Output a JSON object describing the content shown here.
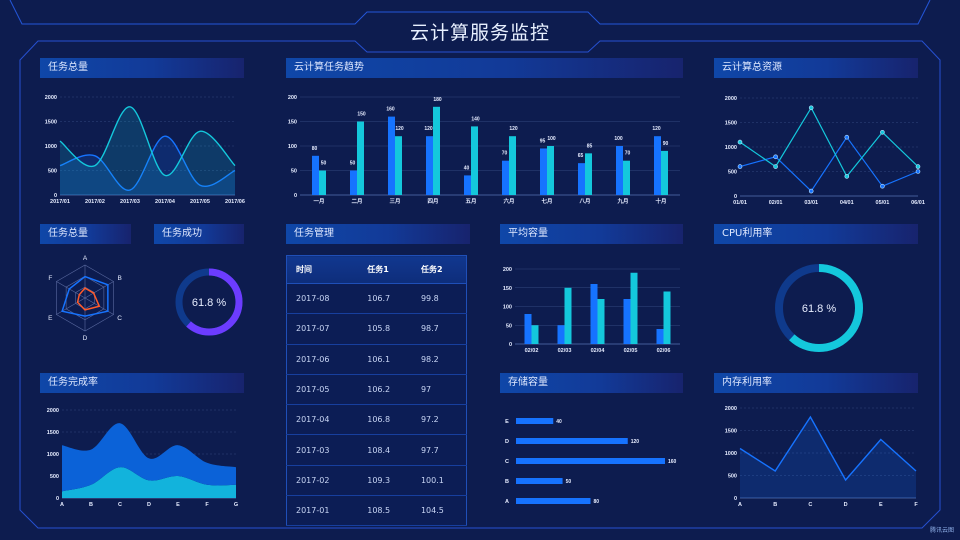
{
  "header": {
    "title": "云计算服务监控"
  },
  "panels": {
    "task_total": "任务总量",
    "task_trend": "云计算任务趋势",
    "total_resources": "云计算总资源",
    "task_total_radar": "任务总量",
    "task_success": "任务成功",
    "task_management": "任务管理",
    "avg_capacity": "平均容量",
    "cpu_usage": "CPU利用率",
    "task_completion": "任务完成率",
    "storage_capacity": "存储容量",
    "memory_usage": "内存利用率"
  },
  "table": {
    "columns": [
      "时间",
      "任务1",
      "任务2"
    ],
    "rows": [
      [
        "2017-08",
        "106.7",
        "99.8"
      ],
      [
        "2017-07",
        "105.8",
        "98.7"
      ],
      [
        "2017-06",
        "106.1",
        "98.2"
      ],
      [
        "2017-05",
        "106.2",
        "97"
      ],
      [
        "2017-04",
        "106.8",
        "97.2"
      ],
      [
        "2017-03",
        "108.4",
        "97.7"
      ],
      [
        "2017-02",
        "109.3",
        "100.1"
      ],
      [
        "2017-01",
        "108.5",
        "104.5"
      ]
    ]
  },
  "colors": {
    "background": "#0d1c4f",
    "blue": "#1673ff",
    "cyan": "#14c8dc",
    "purple": "#6c3cff",
    "frame": "#2456d8"
  },
  "watermark": "腾讯云图",
  "chart_data": [
    {
      "id": "task-total",
      "type": "area",
      "smooth": true,
      "categories": [
        "2017/01",
        "2017/02",
        "2017/03",
        "2017/04",
        "2017/05",
        "2017/06"
      ],
      "yticks": [
        "0",
        "500",
        "1000",
        "1500",
        "2000"
      ],
      "ylim": [
        0,
        2000
      ],
      "grid": true,
      "series": [
        {
          "values": [
            600,
            800,
            100,
            1200,
            200,
            500
          ],
          "color": "#1673ff"
        },
        {
          "values": [
            1100,
            600,
            1800,
            400,
            1300,
            600
          ],
          "color": "#14c8dc"
        }
      ]
    },
    {
      "id": "task-trend",
      "type": "bar",
      "categories": [
        "一月",
        "二月",
        "三月",
        "四月",
        "五月",
        "六月",
        "七月",
        "八月",
        "九月",
        "十月"
      ],
      "yticks": [
        "0",
        "50",
        "100",
        "150",
        "200"
      ],
      "ylim": [
        0,
        200
      ],
      "grid": true,
      "data_labels": true,
      "series": [
        {
          "values": [
            80,
            50,
            160,
            120,
            40,
            70,
            95,
            65,
            100,
            120
          ],
          "color": "#1673ff"
        },
        {
          "values": [
            50,
            150,
            120,
            180,
            140,
            120,
            100,
            85,
            70,
            90
          ],
          "color": "#14c8dc"
        }
      ]
    },
    {
      "id": "total-resources",
      "type": "line",
      "markers": true,
      "categories": [
        "01/01",
        "02/01",
        "03/01",
        "04/01",
        "05/01",
        "06/01"
      ],
      "yticks": [
        "0",
        "500",
        "1000",
        "1500",
        "2000"
      ],
      "ylim": [
        0,
        2000
      ],
      "grid": true,
      "series": [
        {
          "values": [
            600,
            800,
            100,
            1200,
            200,
            500
          ],
          "color": "#1673ff"
        },
        {
          "values": [
            1100,
            600,
            1800,
            400,
            1300,
            600
          ],
          "color": "#14c8dc"
        }
      ]
    },
    {
      "id": "task-radar",
      "type": "radar",
      "indicators": [
        "A",
        "B",
        "C",
        "D",
        "E",
        "F"
      ],
      "max": 100,
      "series": [
        {
          "values": [
            65,
            80,
            80,
            55,
            80,
            55
          ],
          "color": "#1673ff"
        },
        {
          "values": [
            30,
            30,
            50,
            36,
            26,
            20
          ],
          "color": "#ff5a2a"
        }
      ]
    },
    {
      "id": "task-success",
      "type": "gauge",
      "value": 61.8,
      "label": "61.8 %",
      "color": "#6c3cff"
    },
    {
      "id": "avg-capacity",
      "type": "bar",
      "categories": [
        "02/02",
        "02/03",
        "02/04",
        "02/05",
        "02/06"
      ],
      "yticks": [
        "0",
        "50",
        "100",
        "150",
        "200"
      ],
      "ylim": [
        0,
        200
      ],
      "grid": true,
      "series": [
        {
          "values": [
            80,
            50,
            160,
            120,
            40
          ],
          "color": "#1673ff"
        },
        {
          "values": [
            50,
            150,
            120,
            190,
            140
          ],
          "color": "#14c8dc"
        }
      ]
    },
    {
      "id": "cpu-usage",
      "type": "gauge",
      "value": 61.8,
      "label": "61.8 %",
      "color": "#14c8dc"
    },
    {
      "id": "task-completion",
      "type": "area",
      "smooth": true,
      "stacked": true,
      "categories": [
        "A",
        "B",
        "C",
        "D",
        "E",
        "F",
        "G"
      ],
      "yticks": [
        "0",
        "500",
        "1000",
        "1500",
        "2000"
      ],
      "ylim": [
        0,
        2000
      ],
      "grid": true,
      "series": [
        {
          "values": [
            150,
            300,
            700,
            400,
            500,
            300,
            300
          ],
          "color": "#12b3dc"
        },
        {
          "values": [
            1050,
            800,
            1000,
            500,
            700,
            500,
            400
          ],
          "color": "#0b62d8"
        }
      ]
    },
    {
      "id": "storage-capacity",
      "type": "hbar",
      "categories": [
        "A",
        "B",
        "C",
        "D",
        "E"
      ],
      "values": [
        80,
        50,
        160,
        120,
        40
      ],
      "labels": [
        "80",
        "50",
        "160",
        "120",
        "40"
      ],
      "xlim": [
        0,
        160
      ],
      "color": "#1673ff"
    },
    {
      "id": "memory-usage",
      "type": "area",
      "smooth": false,
      "categories": [
        "A",
        "B",
        "C",
        "D",
        "E",
        "F"
      ],
      "yticks": [
        "0",
        "500",
        "1000",
        "1500",
        "2000"
      ],
      "ylim": [
        0,
        2000
      ],
      "grid": true,
      "series": [
        {
          "values": [
            1100,
            600,
            1800,
            400,
            1300,
            600
          ],
          "color": "#1673ff"
        }
      ]
    }
  ]
}
